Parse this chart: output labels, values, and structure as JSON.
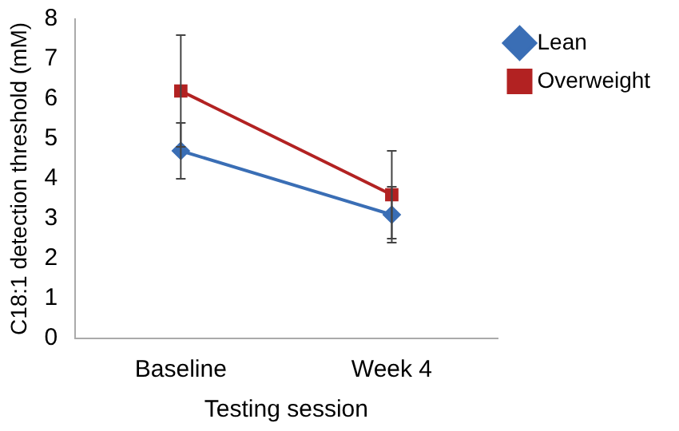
{
  "chart_data": {
    "type": "line",
    "xlabel": "Testing session",
    "ylabel": "C18:1 detection threshold (mM)",
    "categories": [
      "Baseline",
      "Week 4"
    ],
    "series": [
      {
        "name": "Lean",
        "color": "#3a6eb5",
        "values": [
          4.7,
          3.1
        ],
        "errors": [
          0.7,
          0.7
        ],
        "marker": "diamond"
      },
      {
        "name": "Overweight",
        "color": "#b22222",
        "values": [
          6.2,
          3.6
        ],
        "errors": [
          1.4,
          1.1
        ],
        "marker": "square"
      }
    ],
    "ylim": [
      0,
      8
    ],
    "yticks": [
      0,
      1,
      2,
      3,
      4,
      5,
      6,
      7,
      8
    ],
    "grid": false,
    "legend": "top right",
    "line_style": "solid"
  }
}
